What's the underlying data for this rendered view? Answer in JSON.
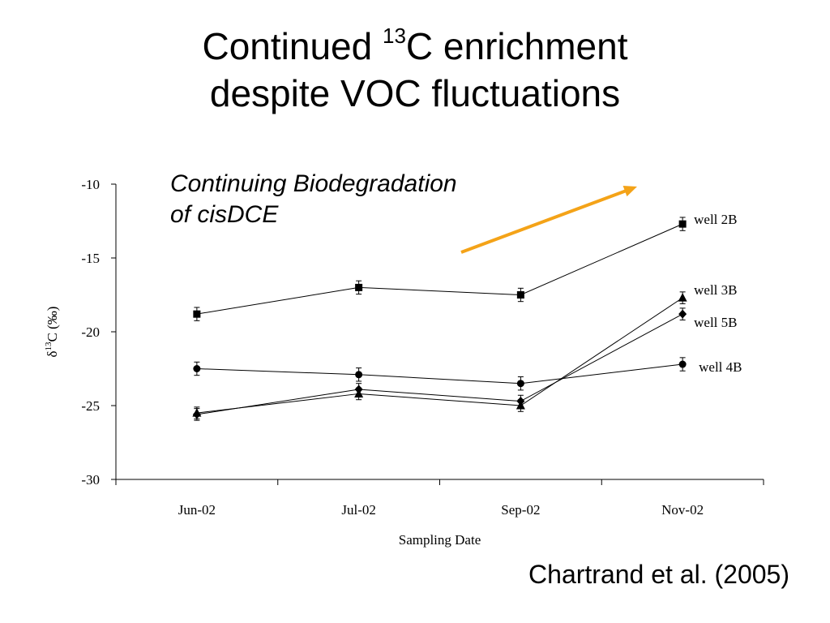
{
  "slide": {
    "title_part1": "Continued ",
    "title_sup": "13",
    "title_part2": "C enrichment",
    "title_line2": "despite VOC fluctuations",
    "annotation_line1": "Continuing Biodegradation",
    "annotation_line2": "of cisDCE",
    "citation": "Chartrand et al. (2005)"
  },
  "colors": {
    "arrow": "#F4A318",
    "series": "#000000",
    "axis": "#000000"
  },
  "chart_data": {
    "type": "line",
    "categories": [
      "Jun-02",
      "Jul-02",
      "Sep-02",
      "Nov-02"
    ],
    "xlabel": "Sampling Date",
    "ylabel_delta": "δ",
    "ylabel_sup": "13",
    "ylabel_rest": "C (‰)",
    "ylim": [
      -30,
      -10
    ],
    "yticks": [
      -10,
      -15,
      -20,
      -25,
      -30
    ],
    "ytick_labels": [
      "-10",
      "-15",
      "-20",
      "-25",
      "-30"
    ],
    "grid": false,
    "legend": "labels at series ends (right)",
    "series": [
      {
        "name": "well 2B",
        "marker": "square",
        "values": [
          -18.8,
          -17.0,
          -17.5,
          -12.7
        ],
        "errors": [
          0.45,
          0.45,
          0.45,
          0.45
        ]
      },
      {
        "name": "well 3B",
        "marker": "triangle",
        "values": [
          -25.5,
          -24.2,
          -25.0,
          -17.7
        ],
        "errors": [
          0.4,
          0.4,
          0.4,
          0.4
        ]
      },
      {
        "name": "well 5B",
        "marker": "diamond",
        "values": [
          -25.6,
          -23.9,
          -24.7,
          -18.8
        ],
        "errors": [
          0.4,
          0.4,
          0.4,
          0.4
        ]
      },
      {
        "name": "well 4B",
        "marker": "circle",
        "values": [
          -22.5,
          -22.9,
          -23.5,
          -22.2
        ],
        "errors": [
          0.45,
          0.45,
          0.45,
          0.45
        ]
      }
    ]
  }
}
